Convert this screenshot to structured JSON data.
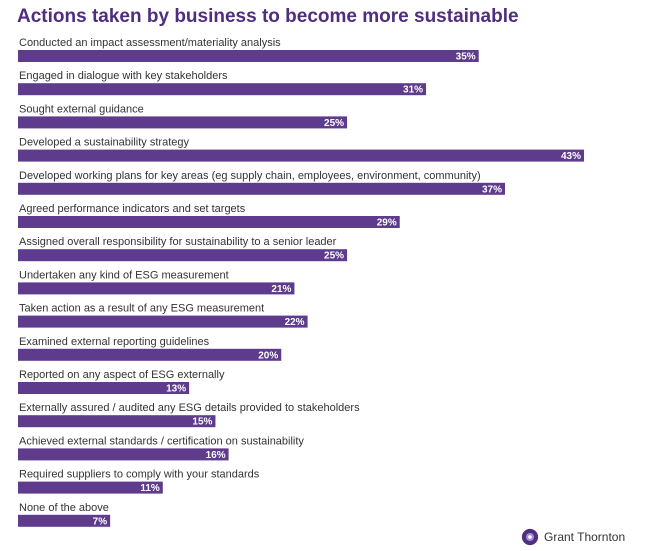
{
  "chart_data": {
    "type": "bar",
    "orientation": "horizontal",
    "title": "Actions taken by business to become more sustainable",
    "categories": [
      "Conducted an impact assessment/materiality analysis",
      "Engaged in dialogue with key stakeholders",
      "Sought external guidance",
      "Developed a sustainability strategy",
      "Developed working plans for key areas (eg supply chain, employees, environment, community)",
      "Agreed performance indicators and set targets",
      "Assigned overall responsibility for sustainability to a senior leader",
      "Undertaken any kind of ESG measurement",
      "Taken action as a result of any ESG measurement",
      "Examined external reporting guidelines",
      "Reported on any aspect of ESG externally",
      "Externally assured / audited any ESG details provided to stakeholders",
      "Achieved external standards / certification on sustainability",
      "Required suppliers to comply with your standards",
      "None of the above"
    ],
    "values": [
      35,
      31,
      25,
      43,
      37,
      29,
      25,
      21,
      22,
      20,
      13,
      15,
      16,
      11,
      7
    ],
    "value_labels": [
      "35%",
      "31%",
      "25%",
      "43%",
      "37%",
      "29%",
      "25%",
      "21%",
      "22%",
      "20%",
      "13%",
      "15%",
      "16%",
      "11%",
      "7%"
    ],
    "unit": "%",
    "xlim": [
      0,
      43
    ],
    "bar_color": "#5e3b8c"
  },
  "logo": {
    "text": "Grant Thornton",
    "color": "#4f2d7f"
  }
}
